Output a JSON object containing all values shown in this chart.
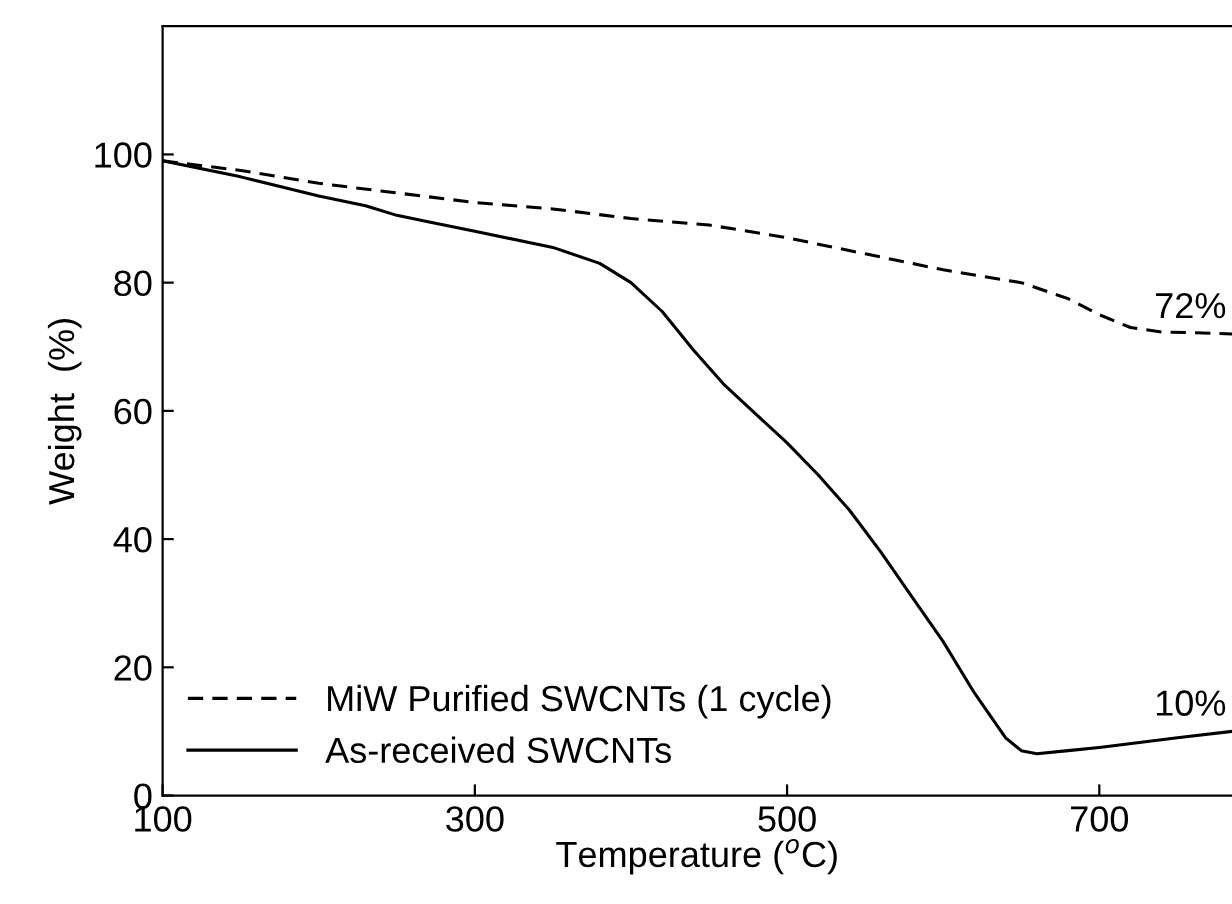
{
  "chart_data": {
    "type": "line",
    "xlabel": "Temperature ($^{o}$C)",
    "ylabel": "Weight  (%)",
    "xlim": [
      100,
      785
    ],
    "ylim": [
      0,
      120
    ],
    "xticks": [
      100,
      300,
      500,
      700
    ],
    "yticks": [
      0,
      20,
      40,
      60,
      80,
      100
    ],
    "legend": "bottom left",
    "grid": false,
    "series": [
      {
        "name": "MiW Purified SWCNTs (1 cycle)",
        "color": "#000000",
        "line_style": "dashed",
        "x": [
          100,
          150,
          200,
          250,
          300,
          350,
          400,
          450,
          500,
          550,
          600,
          650,
          680,
          700,
          720,
          740,
          760,
          785
        ],
        "values": [
          99,
          97.5,
          95.5,
          94,
          92.5,
          91.5,
          90,
          89,
          87,
          84.5,
          82,
          80,
          77.5,
          75,
          73,
          72.3,
          72.2,
          72
        ]
      },
      {
        "name": "As-received SWCNTs",
        "color": "#000000",
        "line_style": "solid",
        "x": [
          100,
          150,
          200,
          230,
          250,
          270,
          300,
          350,
          380,
          400,
          420,
          440,
          460,
          480,
          500,
          520,
          540,
          560,
          580,
          600,
          620,
          640,
          650,
          660,
          680,
          700,
          750,
          785
        ],
        "values": [
          99,
          96.5,
          93.5,
          92,
          90.5,
          89.5,
          88,
          85.5,
          83,
          80,
          75.5,
          69.5,
          64,
          59.5,
          55,
          50,
          44.5,
          38,
          31,
          24,
          16,
          9,
          7,
          6.5,
          7,
          7.5,
          9,
          10
        ]
      }
    ],
    "annotations": [
      {
        "text": "72%",
        "x": 785,
        "y": 72
      },
      {
        "text": "10%",
        "x": 785,
        "y": 10
      }
    ]
  }
}
